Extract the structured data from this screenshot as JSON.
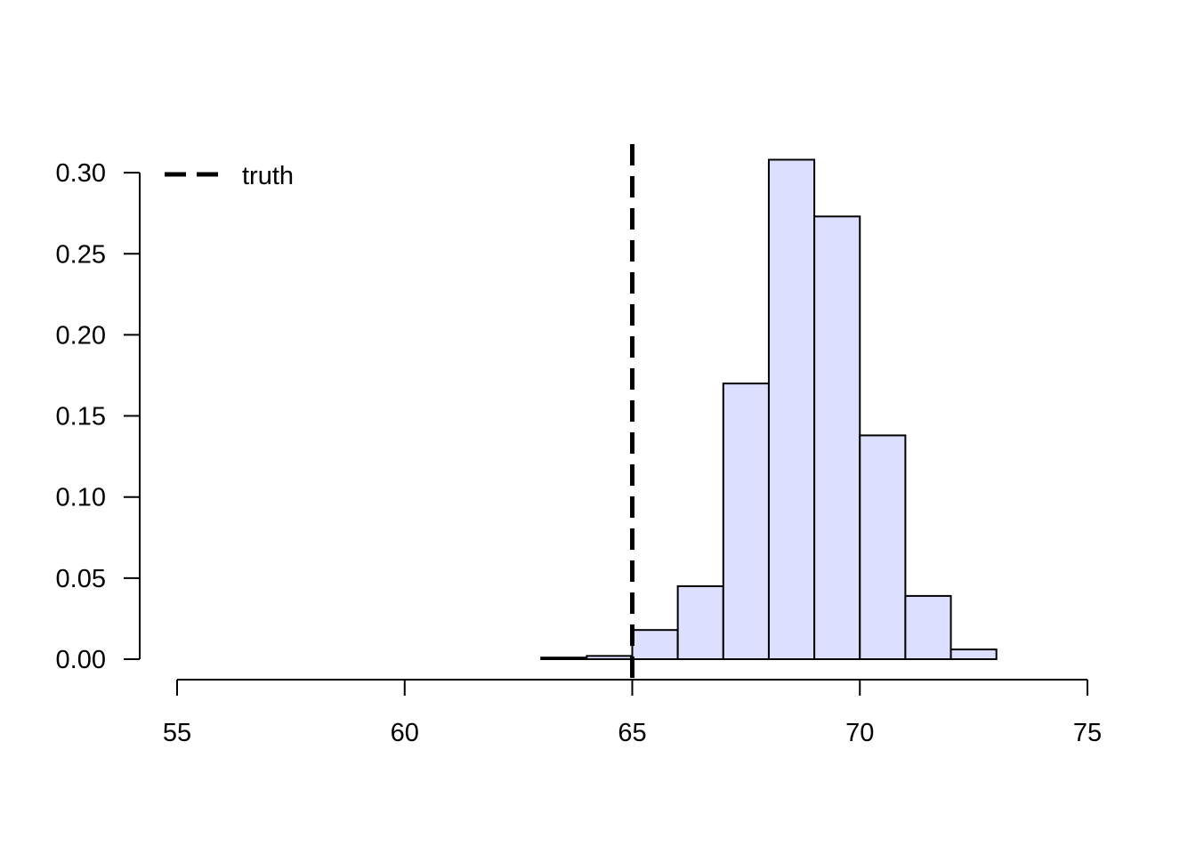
{
  "chart_data": {
    "type": "bar",
    "subtype": "histogram",
    "title": "",
    "xlabel": "",
    "ylabel": "",
    "xlim": [
      55,
      75
    ],
    "ylim": [
      0,
      0.3
    ],
    "x_ticks": [
      55,
      60,
      65,
      70,
      75
    ],
    "x_tick_labels": [
      "55",
      "60",
      "65",
      "70",
      "75"
    ],
    "y_ticks": [
      0,
      0.05,
      0.1,
      0.15,
      0.2,
      0.25,
      0.3
    ],
    "y_tick_labels": [
      "0.00",
      "0.05",
      "0.10",
      "0.15",
      "0.20",
      "0.25",
      "0.30"
    ],
    "bins": [
      {
        "x0": 63,
        "x1": 64,
        "value": 0.001
      },
      {
        "x0": 64,
        "x1": 65,
        "value": 0.002
      },
      {
        "x0": 65,
        "x1": 66,
        "value": 0.018
      },
      {
        "x0": 66,
        "x1": 67,
        "value": 0.045
      },
      {
        "x0": 67,
        "x1": 68,
        "value": 0.17
      },
      {
        "x0": 68,
        "x1": 69,
        "value": 0.308
      },
      {
        "x0": 69,
        "x1": 70,
        "value": 0.273
      },
      {
        "x0": 70,
        "x1": 71,
        "value": 0.138
      },
      {
        "x0": 71,
        "x1": 72,
        "value": 0.039
      },
      {
        "x0": 72,
        "x1": 73,
        "value": 0.006
      }
    ],
    "bar_fill": "#dddfff",
    "bar_stroke": "#000000",
    "reference_line": {
      "x": 65,
      "style": "dashed",
      "color": "#000000",
      "label": "truth"
    },
    "legend": {
      "position": "top-left",
      "entries": [
        {
          "label": "truth",
          "style": "dashed",
          "color": "#000000"
        }
      ]
    },
    "grid": false
  }
}
